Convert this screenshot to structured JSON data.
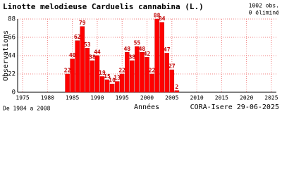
{
  "chart_data": {
    "type": "bar",
    "title": "Linotte melodieuse  Carduelis cannabina (L.)",
    "obs_note": "1002 obs.",
    "eliminated_note": "0 éliminé",
    "y_label": "Observations",
    "x_label": "Années",
    "period_note": "De 1984 a 2008",
    "source_note": "CORA-Isere 29-06-2025",
    "x": [
      1984,
      1985,
      1986,
      1987,
      1988,
      1989,
      1990,
      1991,
      1992,
      1993,
      1994,
      1995,
      1996,
      1997,
      1998,
      1999,
      2000,
      2001,
      2002,
      2003,
      2004,
      2005,
      2006
    ],
    "values": [
      22,
      40,
      62,
      79,
      53,
      38,
      44,
      19,
      15,
      10,
      13,
      22,
      48,
      38,
      55,
      48,
      42,
      22,
      88,
      84,
      47,
      27,
      2
    ],
    "color": "#ff0000",
    "xlim": [
      1974,
      2026
    ],
    "xticks": [
      1975,
      1980,
      1985,
      1990,
      1995,
      2000,
      2005,
      2010,
      2015,
      2020,
      2025
    ],
    "ylim": [
      0,
      88
    ],
    "yticks": [
      0,
      22,
      44,
      66,
      88
    ],
    "grid": true
  }
}
